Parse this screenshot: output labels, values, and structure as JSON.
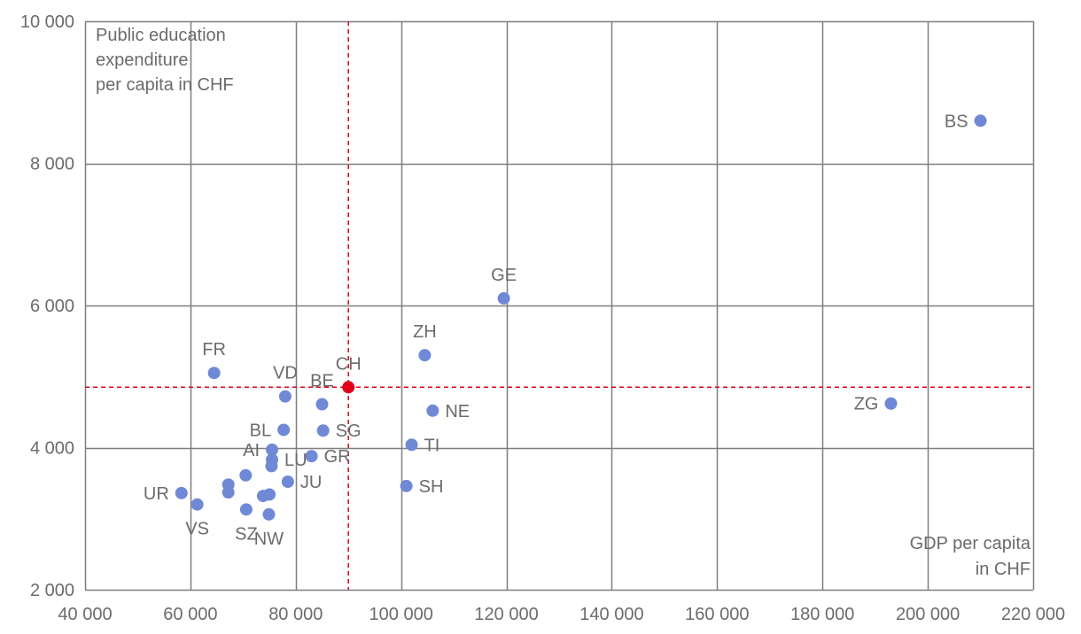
{
  "chart_data": {
    "type": "scatter",
    "title": "",
    "ylabel_lines": [
      "Public education",
      "expenditure",
      "per capita in CHF"
    ],
    "xlabel_lines": [
      "GDP per capita",
      "in CHF"
    ],
    "xlim": [
      40000,
      220000
    ],
    "ylim": [
      2000,
      10000
    ],
    "x_ticks": [
      40000,
      60000,
      80000,
      100000,
      120000,
      140000,
      160000,
      180000,
      200000,
      220000
    ],
    "x_tick_labels": [
      "40 000",
      "60 000",
      "80 000",
      "100 000",
      "120 000",
      "140 000",
      "160 000",
      "180 000",
      "200 000",
      "220 000"
    ],
    "y_ticks": [
      2000,
      4000,
      6000,
      8000,
      10000
    ],
    "y_tick_labels": [
      "2 000",
      "4 000",
      "6 000",
      "8 000",
      "10 000"
    ],
    "grid": true,
    "colors": {
      "points": "#7089d6",
      "highlight": "#e0001b",
      "grid": "#7f7f7f",
      "text": "#6b6b6b"
    },
    "reference": {
      "label": "CH",
      "x": 90000,
      "y": 4850
    },
    "points": [
      {
        "label": "BS",
        "x": 210000,
        "y": 8600,
        "pos": "left"
      },
      {
        "label": "GE",
        "x": 119500,
        "y": 6100,
        "pos": "above"
      },
      {
        "label": "ZG",
        "x": 193000,
        "y": 4620,
        "pos": "left"
      },
      {
        "label": "ZH",
        "x": 104500,
        "y": 5300,
        "pos": "above"
      },
      {
        "label": "FR",
        "x": 64500,
        "y": 5050,
        "pos": "above"
      },
      {
        "label": "VD",
        "x": 78000,
        "y": 4720,
        "pos": "above"
      },
      {
        "label": "BE",
        "x": 85000,
        "y": 4610,
        "pos": "above"
      },
      {
        "label": "NE",
        "x": 106000,
        "y": 4520,
        "pos": "right"
      },
      {
        "label": "SG",
        "x": 85200,
        "y": 4240,
        "pos": "right"
      },
      {
        "label": "BL",
        "x": 77700,
        "y": 4250,
        "pos": "left"
      },
      {
        "label": "TI",
        "x": 102000,
        "y": 4040,
        "pos": "right"
      },
      {
        "label": "AI",
        "x": 75500,
        "y": 3970,
        "pos": "left"
      },
      {
        "label": "GR",
        "x": 83000,
        "y": 3880,
        "pos": "right"
      },
      {
        "label": "LU",
        "x": 75500,
        "y": 3830,
        "pos": "right"
      },
      {
        "label": "",
        "x": 75400,
        "y": 3740,
        "pos": "none"
      },
      {
        "label": "JU",
        "x": 78500,
        "y": 3520,
        "pos": "right"
      },
      {
        "label": "",
        "x": 70500,
        "y": 3610,
        "pos": "none"
      },
      {
        "label": "",
        "x": 67200,
        "y": 3480,
        "pos": "none"
      },
      {
        "label": "",
        "x": 67200,
        "y": 3370,
        "pos": "none"
      },
      {
        "label": "UR",
        "x": 58300,
        "y": 3360,
        "pos": "left"
      },
      {
        "label": "",
        "x": 75000,
        "y": 3340,
        "pos": "none"
      },
      {
        "label": "",
        "x": 73800,
        "y": 3320,
        "pos": "none"
      },
      {
        "label": "SH",
        "x": 101000,
        "y": 3460,
        "pos": "right"
      },
      {
        "label": "VS",
        "x": 61300,
        "y": 3200,
        "pos": "below"
      },
      {
        "label": "SZ",
        "x": 70600,
        "y": 3130,
        "pos": "below"
      },
      {
        "label": "NW",
        "x": 74900,
        "y": 3060,
        "pos": "below"
      }
    ]
  }
}
